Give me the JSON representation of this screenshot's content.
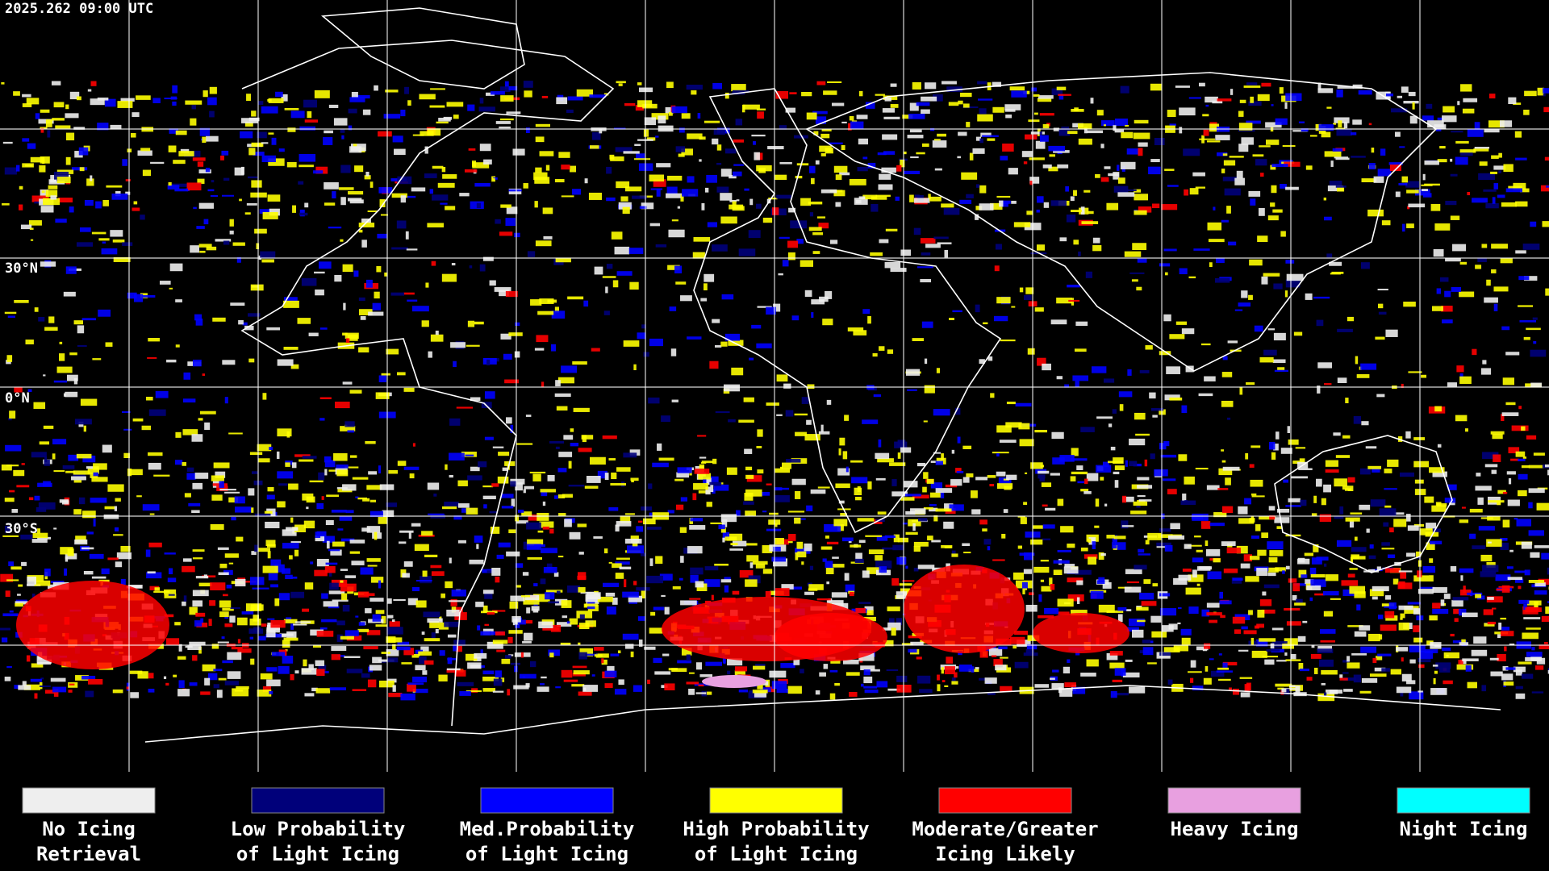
{
  "header": {
    "timestamp": "2025.262 09:00 UTC"
  },
  "map": {
    "latitude_labels": [
      "30°N",
      "0°N",
      "30°S"
    ]
  },
  "legend": {
    "items": [
      {
        "lines": [
          "No Icing",
          "Retrieval"
        ],
        "color": "#eeeeee"
      },
      {
        "lines": [
          "Low Probability",
          "of Light Icing"
        ],
        "color": "#00007a"
      },
      {
        "lines": [
          "Med.Probability",
          "of Light Icing"
        ],
        "color": "#0000ff"
      },
      {
        "lines": [
          "High Probability",
          "of Light Icing"
        ],
        "color": "#ffff00"
      },
      {
        "lines": [
          "Moderate/Greater",
          "Icing Likely"
        ],
        "color": "#ff0000"
      },
      {
        "lines": [
          "Heavy Icing"
        ],
        "color": "#e8a0e0"
      },
      {
        "lines": [
          "Night Icing"
        ],
        "color": "#00ffff"
      }
    ]
  }
}
